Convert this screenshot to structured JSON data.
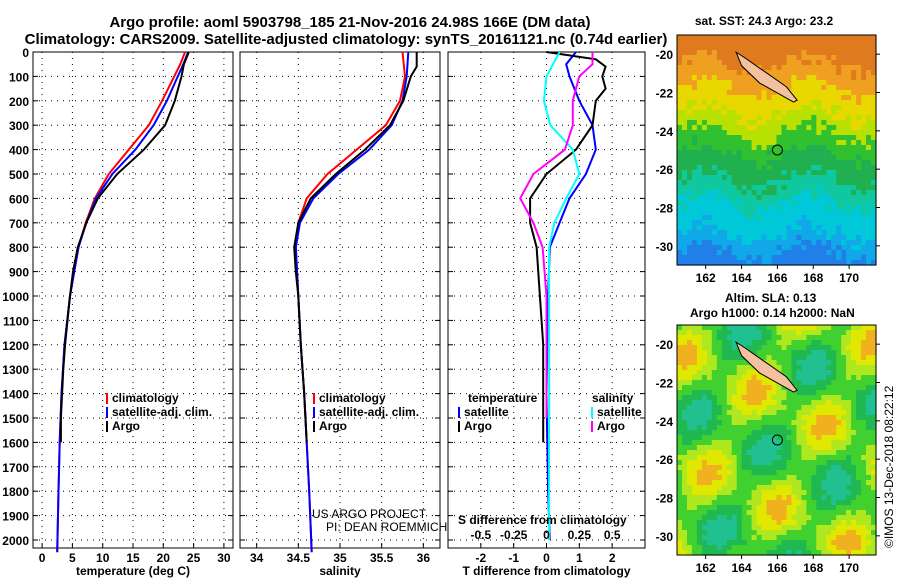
{
  "title_line1": "Argo profile: aoml 5903798_185 21-Nov-2016 24.98S 166E (DM data)",
  "title_line2": "Climatology: CARS2009. Satellite-adjusted climatology: synTS_20161121.nc (0.74d earlier)",
  "credit1": "US ARGO PROJECT",
  "credit2": "PI: DEAN ROEMMICH",
  "timestamp": "©IMOS 13-Dec-2018 08:22:12",
  "colors": {
    "climatology": "#ff0000",
    "satellite": "#0000ff",
    "argo": "#000000",
    "sal_sat": "#00ffff",
    "sal_argo": "#ff00ff"
  },
  "chart_data": [
    {
      "type": "line",
      "name": "temperature",
      "xlabel": "temperature (deg C)",
      "ylabel": "depth",
      "xlim": [
        -1.5,
        31.5
      ],
      "ylim": [
        2050,
        0
      ],
      "xticks": [
        0,
        5,
        10,
        15,
        20,
        25,
        30
      ],
      "yticks": [
        0,
        100,
        200,
        300,
        400,
        500,
        600,
        700,
        800,
        900,
        1000,
        1100,
        1200,
        1300,
        1400,
        1500,
        1600,
        1700,
        1800,
        1900,
        2000
      ],
      "legend": [
        "climatology",
        "satellite-adj. clim.",
        "Argo"
      ],
      "series": [
        {
          "name": "climatology",
          "color": "#ff0000",
          "depth": [
            0,
            50,
            100,
            200,
            300,
            400,
            500,
            600,
            700,
            800,
            1000,
            1200,
            1400,
            1600,
            1800,
            2050
          ],
          "values": [
            23.6,
            22.8,
            21.8,
            19.8,
            17.6,
            14.3,
            11,
            8.7,
            7.2,
            6,
            4.6,
            3.7,
            3.2,
            2.9,
            2.7,
            2.5
          ]
        },
        {
          "name": "satellite-adj. clim.",
          "color": "#0000ff",
          "depth": [
            0,
            50,
            100,
            200,
            300,
            400,
            500,
            600,
            700,
            800,
            1000,
            1200,
            1400,
            1600,
            1800,
            2050
          ],
          "values": [
            24.1,
            23.3,
            22.4,
            20.6,
            18.4,
            15.4,
            11.6,
            8.9,
            7.3,
            6,
            4.6,
            3.7,
            3.2,
            2.9,
            2.7,
            2.5
          ]
        },
        {
          "name": "Argo",
          "color": "#000000",
          "depth": [
            0,
            50,
            100,
            200,
            300,
            400,
            500,
            600,
            700,
            800,
            900,
            1000,
            1100,
            1200,
            1300,
            1400,
            1500,
            1600
          ],
          "values": [
            24.2,
            23.4,
            23,
            21.9,
            20.3,
            16.8,
            12.4,
            9.2,
            7.3,
            5.9,
            5.1,
            4.6,
            4.2,
            3.8,
            3.5,
            3.3,
            3.1,
            3.1
          ]
        }
      ]
    },
    {
      "type": "line",
      "name": "salinity",
      "xlabel": "salinity",
      "xlim": [
        33.8,
        36.2
      ],
      "ylim": [
        2050,
        0
      ],
      "xticks": [
        34,
        34.5,
        35,
        35.5,
        36
      ],
      "legend": [
        "climatology",
        "satellite-adj. clim.",
        "Argo"
      ],
      "series": [
        {
          "name": "climatology",
          "color": "#ff0000",
          "depth": [
            0,
            100,
            200,
            300,
            400,
            500,
            600,
            700,
            800,
            1000,
            1200,
            1400,
            1600,
            1800,
            2050
          ],
          "values": [
            35.75,
            35.78,
            35.72,
            35.55,
            35.2,
            34.85,
            34.6,
            34.5,
            34.47,
            34.5,
            34.53,
            34.57,
            34.6,
            34.63,
            34.66
          ]
        },
        {
          "name": "satellite-adj. clim.",
          "color": "#0000ff",
          "depth": [
            0,
            100,
            200,
            300,
            400,
            500,
            600,
            700,
            800,
            1000,
            1200,
            1400,
            1600,
            1800,
            2050
          ],
          "values": [
            35.82,
            35.8,
            35.75,
            35.62,
            35.35,
            34.98,
            34.68,
            34.52,
            34.47,
            34.5,
            34.53,
            34.57,
            34.6,
            34.63,
            34.66
          ]
        },
        {
          "name": "Argo",
          "color": "#000000",
          "depth": [
            0,
            60,
            100,
            200,
            300,
            400,
            500,
            600,
            700,
            800,
            900,
            1000,
            1200,
            1400,
            1600
          ],
          "values": [
            35.92,
            35.92,
            35.85,
            35.76,
            35.6,
            35.3,
            34.95,
            34.65,
            34.5,
            34.45,
            34.47,
            34.5,
            34.53,
            34.57,
            34.6
          ]
        }
      ]
    },
    {
      "type": "line",
      "name": "differences",
      "xlabel": "T difference from climatology",
      "xlabel2": "S difference from climatology",
      "xlim": [
        -3,
        3
      ],
      "ylim": [
        2050,
        0
      ],
      "xticks": [
        -2,
        -1,
        0,
        1,
        2
      ],
      "xticks2": [
        "-0.5",
        "-0.25",
        "0",
        "0.25",
        "0.5"
      ],
      "legend_t_title": "temperature",
      "legend_s_title": "salinity",
      "legend_t": [
        "satellite",
        "Argo"
      ],
      "legend_s": [
        "satellite",
        "Argo"
      ],
      "series": [
        {
          "name": "T satellite",
          "color": "#0000ff",
          "depth": [
            0,
            50,
            100,
            200,
            300,
            400,
            500,
            600,
            700,
            800,
            1000,
            1400,
            1800,
            2000
          ],
          "values": [
            0.9,
            0.6,
            0.7,
            1.0,
            1.4,
            1.5,
            1.2,
            0.7,
            0.4,
            0.1,
            0.05,
            0,
            0.05,
            0.1
          ]
        },
        {
          "name": "T Argo",
          "color": "#000000",
          "depth": [
            0,
            30,
            60,
            100,
            150,
            200,
            300,
            400,
            500,
            600,
            700,
            800,
            1000,
            1200,
            1500,
            1600
          ],
          "values": [
            0,
            1.5,
            1.8,
            1.7,
            1.8,
            1.5,
            1.4,
            0.9,
            0,
            -0.5,
            -0.5,
            -0.3,
            -0.2,
            -0.1,
            -0.1,
            -0.1
          ]
        },
        {
          "name": "S satellite",
          "color": "#00ffff",
          "depth": [
            0,
            100,
            200,
            300,
            400,
            500,
            600,
            700,
            800,
            1000,
            1500,
            2000
          ],
          "values": [
            0.1,
            0,
            -0.02,
            0.03,
            0.2,
            0.25,
            0.15,
            0.06,
            0.02,
            0.02,
            0.02,
            0.02
          ]
        },
        {
          "name": "S Argo",
          "color": "#ff00ff",
          "depth": [
            0,
            50,
            100,
            200,
            300,
            400,
            500,
            600,
            700,
            800,
            1000,
            1500
          ],
          "values": [
            0.35,
            0.35,
            0.25,
            0.2,
            0.2,
            0.14,
            -0.1,
            -0.2,
            -0.1,
            -0.03,
            0,
            0
          ]
        }
      ]
    }
  ],
  "map_sst": {
    "title": "sat. SST: 24.3 Argo: 23.2",
    "lon_ticks": [
      "162",
      "164",
      "166",
      "168",
      "170"
    ],
    "lat_ticks": [
      "-20",
      "-22",
      "-24",
      "-26",
      "-28",
      "-30"
    ]
  },
  "map_sla": {
    "title1": "Altim. SLA: 0.13",
    "title2": "Argo h1000: 0.14 h2000: NaN",
    "lon_ticks": [
      "162",
      "164",
      "166",
      "168",
      "170"
    ],
    "lat_ticks": [
      "-20",
      "-22",
      "-24",
      "-26",
      "-28",
      "-30"
    ]
  }
}
